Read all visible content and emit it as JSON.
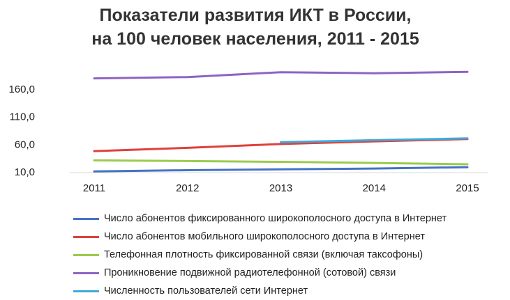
{
  "chart_data": {
    "type": "line",
    "title_lines": [
      "Показатели развития ИКТ в России,",
      "на 100 человек населения, 2011 - 2015"
    ],
    "categories": [
      "2011",
      "2012",
      "2013",
      "2014",
      "2015"
    ],
    "y_ticks": [
      "10,0",
      "60,0",
      "110,0",
      "160,0"
    ],
    "ylim": [
      10,
      210
    ],
    "grid": false,
    "legend_position": "bottom",
    "series": [
      {
        "name": "Число абонентов фиксированного широкополосного доступа в Интернет",
        "color": "#4472C4",
        "values": [
          10.9,
          13.1,
          14.6,
          16.2,
          18.5
        ]
      },
      {
        "name": "Число абонентов мобильного широкополосного доступа в Интернет",
        "color": "#E0403A",
        "values": [
          47.6,
          53.5,
          60.5,
          65.2,
          69.4
        ]
      },
      {
        "name": "Телефонная плотность фиксированной связи (включая таксофоны)",
        "color": "#9BCB4C",
        "values": [
          30.9,
          29.6,
          28.3,
          26.2,
          23.8
        ]
      },
      {
        "name": "Проникновение подвижной радиотелефонной (сотовой) связи",
        "color": "#8E63C4",
        "values": [
          179.0,
          181.4,
          190.2,
          188.4,
          190.8
        ]
      },
      {
        "name": "Численность пользователей сети Интернет",
        "color": "#3FA9DA",
        "values": [
          null,
          null,
          63.8,
          67.3,
          70.6
        ]
      }
    ]
  }
}
